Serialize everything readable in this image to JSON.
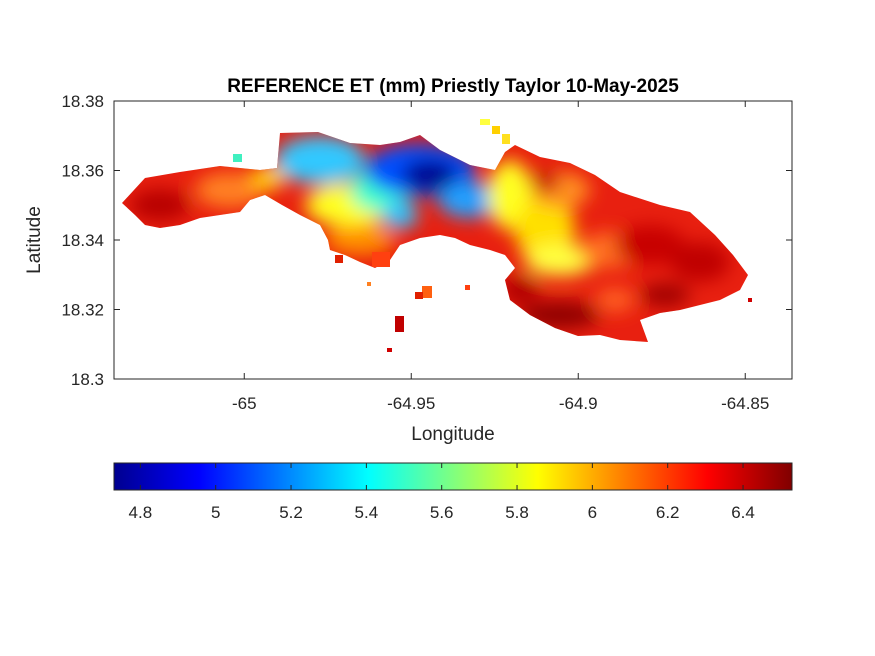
{
  "map": {
    "title": "REFERENCE ET (mm) Priestly Taylor 10-May-2025",
    "xlabel": "Longitude",
    "ylabel": "Latitude",
    "x_ticks": [
      "-65",
      "-64.95",
      "-64.9",
      "-64.85"
    ],
    "y_ticks": [
      "18.38",
      "18.36",
      "18.34",
      "18.32",
      "18.3"
    ],
    "xlim": [
      -65.039,
      -64.836
    ],
    "ylim": [
      18.3,
      18.38
    ],
    "colormap": "jet",
    "grid": false
  },
  "colorbar": {
    "location": "bottom",
    "range": [
      4.73,
      6.53
    ],
    "ticks": [
      "4.8",
      "5",
      "5.2",
      "5.4",
      "5.6",
      "5.8",
      "6",
      "6.2",
      "6.4"
    ]
  }
}
